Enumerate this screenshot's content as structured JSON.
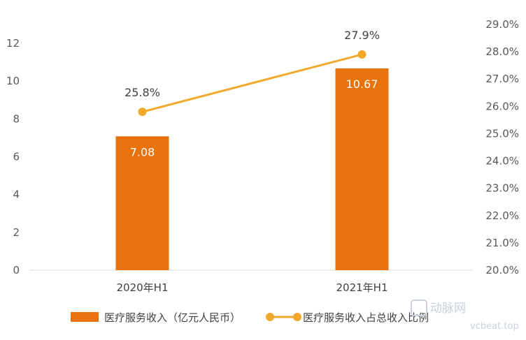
{
  "chart_data": {
    "type": "bar",
    "categories": [
      "2020年H1",
      "2021年H1"
    ],
    "series": [
      {
        "name": "医疗服务收入（亿元人民币）",
        "type": "bar",
        "axis": "left",
        "values": [
          7.08,
          10.67
        ],
        "labels": [
          "7.08",
          "10.67"
        ],
        "color": "#e8720c"
      },
      {
        "name": "医疗服务收入占总收入比例",
        "type": "line",
        "axis": "right",
        "values": [
          25.8,
          27.9
        ],
        "labels": [
          "25.8%",
          "27.9%"
        ],
        "color": "#f0a92b"
      }
    ],
    "y_left": {
      "min": 0,
      "max": 12,
      "ticks": [
        "0",
        "2",
        "4",
        "6",
        "8",
        "10",
        "12"
      ]
    },
    "y_right": {
      "min": 20.0,
      "max": 29.0,
      "ticks": [
        "20.0%",
        "21.0%",
        "22.0%",
        "23.0%",
        "24.0%",
        "25.0%",
        "26.0%",
        "27.0%",
        "28.0%",
        "29.0%"
      ]
    },
    "legend_position": "bottom",
    "grid": false
  },
  "watermark": {
    "brand": "动脉网",
    "site": "vcbeat.top"
  }
}
